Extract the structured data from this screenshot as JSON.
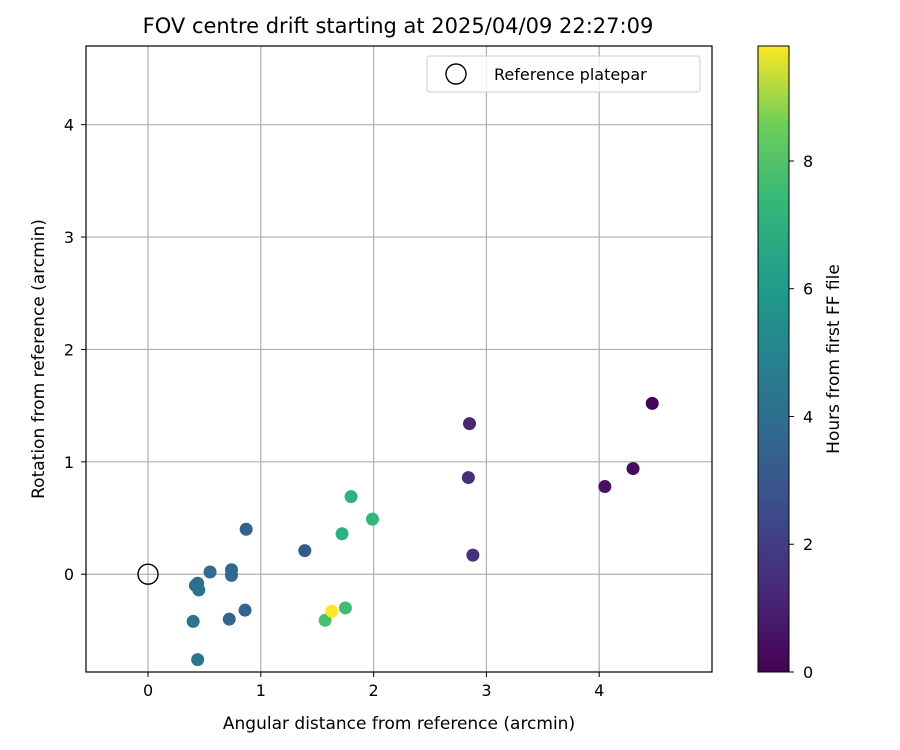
{
  "chart_data": {
    "type": "scatter",
    "title": "FOV centre drift starting at 2025/04/09 22:27:09",
    "xlabel": "Angular distance from reference (arcmin)",
    "ylabel": "Rotation from reference (arcmin)",
    "xlim": [
      -0.55,
      5.0
    ],
    "ylim": [
      -0.87,
      4.7
    ],
    "xticks": [
      0,
      1,
      2,
      3,
      4
    ],
    "yticks": [
      0,
      1,
      2,
      3,
      4
    ],
    "grid": true,
    "legend": {
      "placement": "upper right",
      "entries": [
        "Reference platepar"
      ]
    },
    "reference_point": {
      "name": "Reference platepar",
      "x": 0,
      "y": 0
    },
    "colorbar": {
      "label": "Hours from first FF file",
      "colormap": "viridis",
      "range": [
        0,
        9.8
      ],
      "ticks": [
        0,
        2,
        4,
        6,
        8
      ]
    },
    "points": [
      {
        "x": 4.47,
        "y": 1.52,
        "c": 0.1
      },
      {
        "x": 4.3,
        "y": 0.94,
        "c": 0.3
      },
      {
        "x": 4.05,
        "y": 0.78,
        "c": 0.5
      },
      {
        "x": 2.85,
        "y": 1.34,
        "c": 1.2
      },
      {
        "x": 2.84,
        "y": 0.86,
        "c": 1.4
      },
      {
        "x": 2.88,
        "y": 0.17,
        "c": 1.6
      },
      {
        "x": 1.39,
        "y": 0.21,
        "c": 3.2
      },
      {
        "x": 0.87,
        "y": 0.4,
        "c": 3.4
      },
      {
        "x": 0.86,
        "y": -0.32,
        "c": 3.5
      },
      {
        "x": 0.74,
        "y": 0.04,
        "c": 3.7
      },
      {
        "x": 0.74,
        "y": -0.01,
        "c": 3.8
      },
      {
        "x": 0.72,
        "y": -0.4,
        "c": 3.6
      },
      {
        "x": 0.55,
        "y": 0.02,
        "c": 3.9
      },
      {
        "x": 0.44,
        "y": -0.08,
        "c": 4.0
      },
      {
        "x": 0.42,
        "y": -0.1,
        "c": 3.9
      },
      {
        "x": 0.45,
        "y": -0.14,
        "c": 4.1
      },
      {
        "x": 0.4,
        "y": -0.42,
        "c": 4.2
      },
      {
        "x": 0.44,
        "y": -0.76,
        "c": 4.2
      },
      {
        "x": 1.8,
        "y": 0.69,
        "c": 7.1
      },
      {
        "x": 1.99,
        "y": 0.49,
        "c": 7.3
      },
      {
        "x": 1.72,
        "y": 0.36,
        "c": 7.0
      },
      {
        "x": 1.75,
        "y": -0.3,
        "c": 7.6
      },
      {
        "x": 1.57,
        "y": -0.41,
        "c": 7.8
      },
      {
        "x": 1.63,
        "y": -0.33,
        "c": 9.8
      }
    ]
  }
}
